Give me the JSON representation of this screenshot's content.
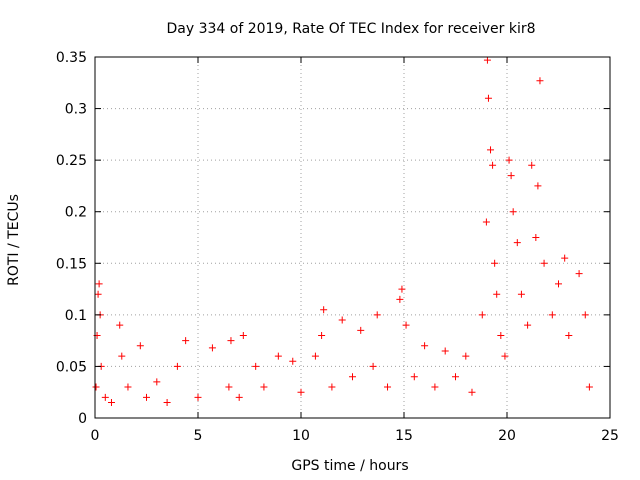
{
  "chart_data": {
    "type": "scatter",
    "title": "Day 334 of 2019, Rate Of TEC Index for receiver kir8",
    "xlabel": "GPS time / hours",
    "ylabel": "ROTI / TECUs",
    "xlim": [
      0,
      25
    ],
    "ylim": [
      0,
      0.35
    ],
    "xticks": [
      0,
      5,
      10,
      15,
      20,
      25
    ],
    "yticks": [
      0,
      0.05,
      0.1,
      0.15,
      0.2,
      0.25,
      0.3,
      0.35
    ],
    "xtick_labels": [
      "0",
      "5",
      "10",
      "15",
      "20",
      "25"
    ],
    "ytick_labels": [
      "0",
      "0.05",
      "0.1",
      "0.15",
      "0.2",
      "0.25",
      "0.3",
      "0.35"
    ],
    "grid": true,
    "marker": "+",
    "series": [
      {
        "name": "ROTI",
        "color": "#ff0000",
        "points": [
          [
            0.05,
            0.03
          ],
          [
            0.1,
            0.08
          ],
          [
            0.15,
            0.12
          ],
          [
            0.2,
            0.13
          ],
          [
            0.25,
            0.1
          ],
          [
            0.3,
            0.05
          ],
          [
            0.5,
            0.02
          ],
          [
            0.8,
            0.015
          ],
          [
            1.2,
            0.09
          ],
          [
            1.3,
            0.06
          ],
          [
            1.6,
            0.03
          ],
          [
            2.2,
            0.07
          ],
          [
            2.5,
            0.02
          ],
          [
            3.0,
            0.035
          ],
          [
            3.5,
            0.015
          ],
          [
            4.0,
            0.05
          ],
          [
            4.4,
            0.075
          ],
          [
            5.0,
            0.02
          ],
          [
            5.7,
            0.068
          ],
          [
            6.5,
            0.03
          ],
          [
            6.6,
            0.075
          ],
          [
            7.0,
            0.02
          ],
          [
            7.2,
            0.08
          ],
          [
            7.8,
            0.05
          ],
          [
            8.2,
            0.03
          ],
          [
            8.9,
            0.06
          ],
          [
            9.6,
            0.055
          ],
          [
            10.0,
            0.025
          ],
          [
            10.7,
            0.06
          ],
          [
            11.0,
            0.08
          ],
          [
            11.1,
            0.105
          ],
          [
            11.5,
            0.03
          ],
          [
            12.0,
            0.095
          ],
          [
            12.5,
            0.04
          ],
          [
            12.9,
            0.085
          ],
          [
            13.5,
            0.05
          ],
          [
            13.7,
            0.1
          ],
          [
            14.2,
            0.03
          ],
          [
            14.8,
            0.115
          ],
          [
            14.9,
            0.125
          ],
          [
            15.1,
            0.09
          ],
          [
            15.5,
            0.04
          ],
          [
            16.0,
            0.07
          ],
          [
            16.5,
            0.03
          ],
          [
            17.0,
            0.065
          ],
          [
            17.5,
            0.04
          ],
          [
            18.0,
            0.06
          ],
          [
            18.3,
            0.025
          ],
          [
            18.8,
            0.1
          ],
          [
            19.0,
            0.19
          ],
          [
            19.05,
            0.347
          ],
          [
            19.1,
            0.31
          ],
          [
            19.2,
            0.26
          ],
          [
            19.3,
            0.245
          ],
          [
            19.4,
            0.15
          ],
          [
            19.5,
            0.12
          ],
          [
            19.7,
            0.08
          ],
          [
            19.9,
            0.06
          ],
          [
            20.1,
            0.25
          ],
          [
            20.2,
            0.235
          ],
          [
            20.3,
            0.2
          ],
          [
            20.5,
            0.17
          ],
          [
            20.7,
            0.12
          ],
          [
            21.0,
            0.09
          ],
          [
            21.2,
            0.245
          ],
          [
            21.4,
            0.175
          ],
          [
            21.5,
            0.225
          ],
          [
            21.6,
            0.327
          ],
          [
            21.8,
            0.15
          ],
          [
            22.2,
            0.1
          ],
          [
            22.5,
            0.13
          ],
          [
            22.8,
            0.155
          ],
          [
            23.0,
            0.08
          ],
          [
            23.5,
            0.14
          ],
          [
            23.8,
            0.1
          ],
          [
            24.0,
            0.03
          ]
        ]
      }
    ]
  }
}
